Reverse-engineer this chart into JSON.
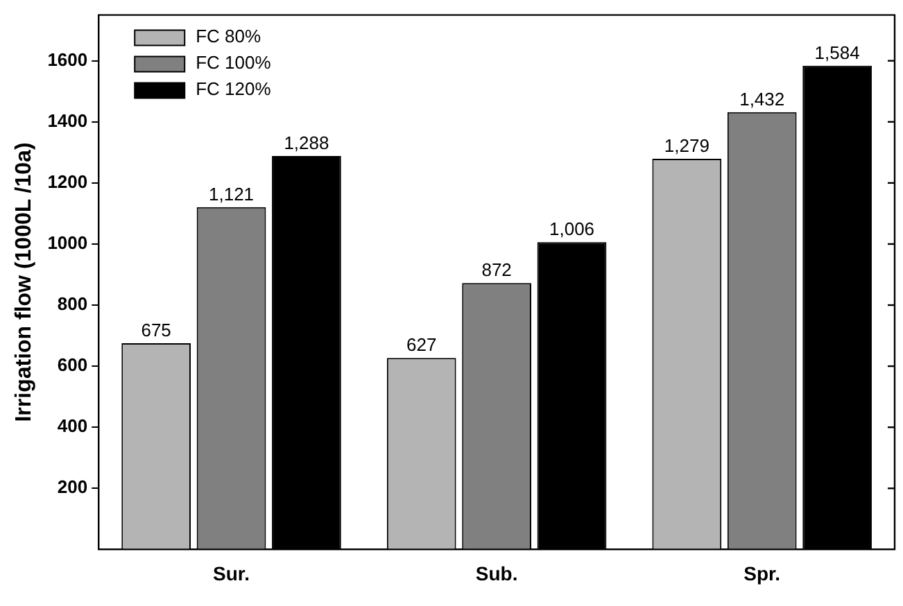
{
  "chart_data": {
    "type": "bar",
    "ylabel": "Irrigation flow (1000L /10a)",
    "categories": [
      "Sur.",
      "Sub.",
      "Spr."
    ],
    "series": [
      {
        "name": "FC 80%",
        "color": "#b4b4b4",
        "values": [
          675,
          627,
          1279
        ],
        "value_labels": [
          "675",
          "627",
          "1,279"
        ]
      },
      {
        "name": "FC 100%",
        "color": "#808080",
        "values": [
          1121,
          872,
          1432
        ],
        "value_labels": [
          "1,121",
          "872",
          "1,432"
        ]
      },
      {
        "name": "FC 120%",
        "color": "#000000",
        "values": [
          1288,
          1006,
          1584
        ],
        "value_labels": [
          "1,288",
          "1,006",
          "1,584"
        ]
      }
    ],
    "ylim": [
      0,
      1750
    ],
    "yticks": [
      200,
      400,
      600,
      800,
      1000,
      1200,
      1400,
      1600
    ],
    "grid": false,
    "legend": "top left"
  }
}
